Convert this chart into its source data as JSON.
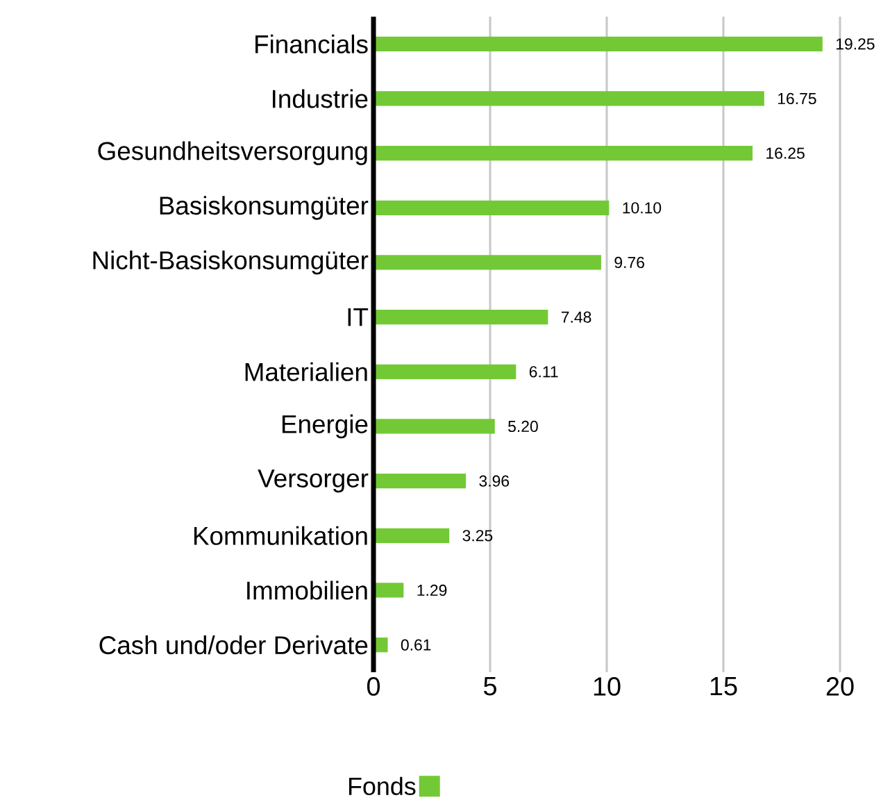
{
  "chart_data": {
    "type": "bar",
    "orientation": "horizontal",
    "categories": [
      "Financials",
      "Industrie",
      "Gesundheitsversorgung",
      "Basiskonsumgüter",
      "Nicht-Basiskonsumgüter",
      "IT",
      "Materialien",
      "Energie",
      "Versorger",
      "Kommunikation",
      "Immobilien",
      "Cash und/oder Derivate"
    ],
    "series": [
      {
        "name": "Fonds",
        "color": "#72c935",
        "values": [
          19.25,
          16.75,
          16.25,
          10.1,
          9.76,
          7.48,
          6.11,
          5.2,
          3.96,
          3.25,
          1.29,
          0.61
        ],
        "value_labels": [
          "19.25",
          "16.75",
          "16.25",
          "10.10",
          "9.76",
          "7.48",
          "6.11",
          "5.20",
          "3.96",
          "3.25",
          "1.29",
          "0.61"
        ]
      }
    ],
    "xlim": [
      0,
      20
    ],
    "xticks": [
      0,
      5,
      10,
      15,
      20
    ],
    "grid": "x",
    "legend": "bottom"
  }
}
